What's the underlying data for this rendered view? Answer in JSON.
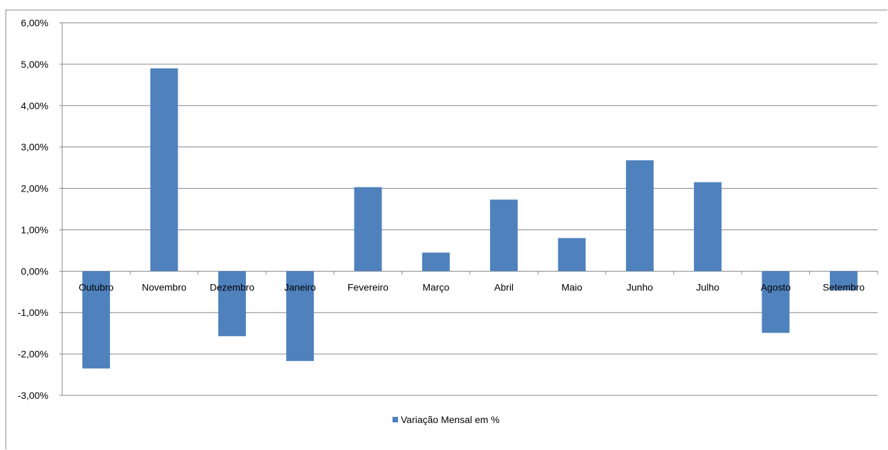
{
  "chart_data": {
    "type": "bar",
    "categories": [
      "Outubro",
      "Novembro",
      "Dezembro",
      "Janeiro",
      "Fevereiro",
      "Março",
      "Abril",
      "Maio",
      "Junho",
      "Julho",
      "Agosto",
      "Setembro"
    ],
    "series": [
      {
        "name": "Variação Mensal em %",
        "values": [
          -2.35,
          4.9,
          -1.57,
          -2.17,
          2.03,
          0.45,
          1.73,
          0.8,
          2.68,
          2.15,
          -1.49,
          -0.46
        ]
      }
    ],
    "yticks": [
      "6,00%",
      "5,00%",
      "4,00%",
      "3,00%",
      "2,00%",
      "1,00%",
      "0,00%",
      "-1,00%",
      "-2,00%",
      "-3,00%"
    ],
    "ylim": [
      -3,
      6
    ],
    "grid": true,
    "legend": "bottom",
    "bar_color": "#4f81bd",
    "grid_color": "#868686"
  }
}
